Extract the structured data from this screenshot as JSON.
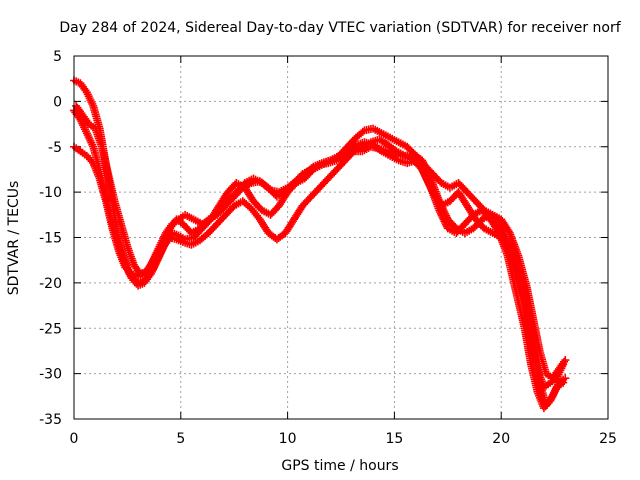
{
  "chart_data": {
    "type": "scatter",
    "title": "Day 284 of 2024, Sidereal Day-to-day VTEC variation (SDTVAR) for receiver norf",
    "xlabel": "GPS time / hours",
    "ylabel": "SDTVAR / TECUs",
    "xlim": [
      0,
      25
    ],
    "ylim": [
      -35,
      5
    ],
    "x_ticks": [
      "0",
      "5",
      "10",
      "15",
      "20",
      "25"
    ],
    "y_ticks": [
      "5",
      "0",
      "-5",
      "-10",
      "-15",
      "-20",
      "-25",
      "-30",
      "-35"
    ],
    "grid": true,
    "marker": "+",
    "series_color": "#ff0000",
    "series": [
      {
        "x": [
          0.0,
          0.3,
          0.6,
          0.9,
          1.2,
          1.5,
          1.8,
          2.0,
          2.3,
          2.6,
          2.9,
          3.1,
          3.4,
          3.7,
          4.0,
          4.3,
          4.6,
          4.9,
          5.2,
          5.6,
          6.0,
          6.4,
          6.8,
          7.2,
          7.6,
          8.0,
          8.4,
          8.8,
          9.2,
          9.6,
          10.0,
          10.4,
          10.8,
          11.2,
          11.6,
          12.0,
          12.4,
          12.8,
          13.2,
          13.6,
          14.0,
          14.4,
          14.8,
          15.2,
          15.6,
          16.0,
          16.4,
          16.8,
          17.2,
          17.6,
          18.0,
          18.4,
          18.8,
          19.2,
          19.6,
          20.0,
          20.4,
          20.8,
          21.2,
          21.5,
          21.8,
          22.1,
          22.4,
          22.7,
          23.0
        ],
        "y": [
          2.3,
          2.0,
          1.0,
          -0.5,
          -3.0,
          -7.0,
          -11.0,
          -14.0,
          -17.0,
          -19.0,
          -19.8,
          -20.0,
          -19.5,
          -18.5,
          -17.0,
          -15.5,
          -14.5,
          -14.8,
          -15.2,
          -15.0,
          -14.0,
          -13.0,
          -11.5,
          -10.0,
          -9.0,
          -9.5,
          -11.0,
          -12.0,
          -12.5,
          -11.5,
          -10.0,
          -9.0,
          -8.5,
          -7.5,
          -7.0,
          -6.5,
          -6.0,
          -5.0,
          -4.0,
          -3.2,
          -3.0,
          -3.5,
          -4.0,
          -4.5,
          -5.0,
          -6.0,
          -8.0,
          -10.0,
          -11.5,
          -11.0,
          -10.0,
          -11.5,
          -13.0,
          -14.0,
          -14.5,
          -15.0,
          -16.0,
          -19.0,
          -23.0,
          -27.0,
          -31.0,
          -33.5,
          -32.5,
          -31.0,
          -30.5
        ]
      },
      {
        "x": [
          0.0,
          0.3,
          0.6,
          0.9,
          1.2,
          1.5,
          1.8,
          2.1,
          2.4,
          2.7,
          3.0,
          3.3,
          3.6,
          3.9,
          4.2,
          4.5,
          4.8,
          5.1,
          5.5,
          5.9,
          6.3,
          6.7,
          7.1,
          7.5,
          7.9,
          8.3,
          8.7,
          9.1,
          9.5,
          9.9,
          10.3,
          10.7,
          11.1,
          11.5,
          11.9,
          12.3,
          12.7,
          13.1,
          13.5,
          13.9,
          14.3,
          14.7,
          15.1,
          15.5,
          15.9,
          16.3,
          16.7,
          17.1,
          17.5,
          17.9,
          18.3,
          18.7,
          19.1,
          19.5,
          19.9,
          20.3,
          20.7,
          21.1,
          21.4,
          21.7,
          22.0,
          22.3,
          22.6,
          22.9
        ],
        "y": [
          -1.0,
          -2.0,
          -3.5,
          -5.0,
          -7.5,
          -10.5,
          -13.5,
          -16.0,
          -18.0,
          -19.5,
          -20.3,
          -20.0,
          -19.0,
          -17.5,
          -16.0,
          -15.0,
          -15.2,
          -15.5,
          -15.8,
          -15.3,
          -14.5,
          -13.5,
          -12.5,
          -11.5,
          -11.0,
          -11.8,
          -13.0,
          -14.5,
          -15.2,
          -14.5,
          -13.0,
          -11.5,
          -10.5,
          -9.5,
          -8.5,
          -7.5,
          -6.5,
          -5.5,
          -5.0,
          -4.5,
          -4.2,
          -4.8,
          -5.5,
          -6.0,
          -6.5,
          -7.5,
          -9.5,
          -12.0,
          -14.0,
          -14.5,
          -13.5,
          -12.5,
          -12.0,
          -13.0,
          -14.5,
          -17.0,
          -21.0,
          -25.0,
          -29.0,
          -32.0,
          -33.8,
          -33.0,
          -31.5,
          -31.0
        ]
      },
      {
        "x": [
          0.0,
          0.3,
          0.6,
          0.9,
          1.2,
          1.5,
          1.8,
          2.1,
          2.4,
          2.7,
          3.0,
          3.3,
          3.6,
          3.9,
          4.2,
          4.5,
          4.8,
          5.1,
          5.5,
          5.9,
          6.3,
          6.7,
          7.1,
          7.5,
          7.9,
          8.3,
          8.7,
          9.1,
          9.5,
          9.9,
          10.3,
          10.7,
          11.1,
          11.5,
          11.9,
          12.3,
          12.7,
          13.1,
          13.5,
          13.9,
          14.3,
          14.7,
          15.1,
          15.5,
          15.9,
          16.3,
          16.7,
          17.1,
          17.5,
          17.9,
          18.3,
          18.7,
          19.1,
          19.5,
          19.9,
          20.3,
          20.7,
          21.1,
          21.4,
          21.7,
          22.0,
          22.3,
          22.6,
          22.9
        ],
        "y": [
          -5.0,
          -5.5,
          -6.0,
          -6.8,
          -8.5,
          -11.0,
          -14.0,
          -16.5,
          -18.3,
          -19.0,
          -19.3,
          -19.0,
          -18.0,
          -16.8,
          -15.5,
          -14.0,
          -13.0,
          -13.5,
          -14.5,
          -14.0,
          -13.0,
          -12.5,
          -11.5,
          -10.5,
          -9.5,
          -9.0,
          -8.8,
          -9.5,
          -10.5,
          -10.0,
          -9.0,
          -8.0,
          -7.5,
          -7.0,
          -6.8,
          -6.5,
          -6.0,
          -5.5,
          -5.5,
          -5.0,
          -5.2,
          -5.5,
          -6.0,
          -6.0,
          -5.8,
          -6.5,
          -8.5,
          -11.0,
          -13.0,
          -14.0,
          -14.5,
          -14.0,
          -13.0,
          -12.5,
          -13.5,
          -15.5,
          -18.5,
          -22.0,
          -26.0,
          -29.5,
          -31.5,
          -31.0,
          -30.5,
          -29.0
        ]
      },
      {
        "x": [
          0.1,
          0.4,
          0.7,
          1.0,
          1.3,
          1.6,
          1.9,
          2.2,
          2.5,
          2.8,
          3.1,
          3.4,
          3.7,
          4.0,
          4.3,
          4.6,
          4.9,
          5.2,
          5.6,
          6.0,
          6.4,
          6.8,
          7.2,
          7.6,
          8.0,
          8.4,
          8.8,
          9.2,
          9.6,
          10.0,
          10.4,
          10.8,
          11.2,
          11.6,
          12.0,
          12.4,
          12.8,
          13.2,
          13.6,
          14.0,
          14.4,
          14.8,
          15.2,
          15.6,
          16.0,
          16.4,
          16.8,
          17.2,
          17.6,
          18.0,
          18.4,
          18.8,
          19.2,
          19.6,
          20.0,
          20.4,
          20.8,
          21.2,
          21.5,
          21.8,
          22.1,
          22.4,
          22.7,
          23.0
        ],
        "y": [
          -0.5,
          -1.5,
          -2.5,
          -3.0,
          -5.0,
          -8.0,
          -11.0,
          -13.5,
          -16.0,
          -18.0,
          -19.0,
          -18.8,
          -17.5,
          -16.0,
          -14.5,
          -13.5,
          -13.0,
          -12.5,
          -13.0,
          -13.5,
          -13.0,
          -12.0,
          -11.0,
          -10.0,
          -9.0,
          -8.5,
          -9.0,
          -9.8,
          -10.0,
          -9.5,
          -8.8,
          -8.0,
          -7.2,
          -6.8,
          -6.5,
          -6.2,
          -5.5,
          -4.8,
          -4.5,
          -4.8,
          -5.5,
          -6.0,
          -6.5,
          -6.8,
          -6.5,
          -7.0,
          -8.0,
          -9.0,
          -9.5,
          -9.0,
          -10.0,
          -11.0,
          -12.0,
          -12.5,
          -13.0,
          -14.5,
          -17.0,
          -20.5,
          -24.0,
          -27.5,
          -30.0,
          -30.5,
          -29.5,
          -28.5
        ]
      }
    ]
  }
}
